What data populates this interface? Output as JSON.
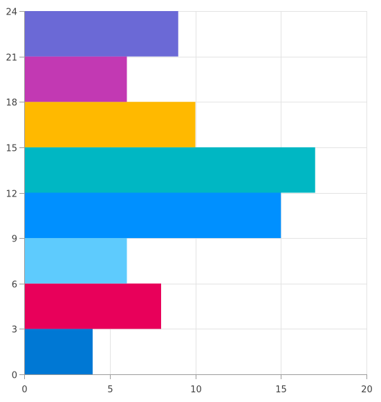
{
  "chart_data": {
    "type": "bar",
    "orientation": "horizontal",
    "title": "",
    "xlabel": "",
    "ylabel": "",
    "xlim": [
      0,
      20
    ],
    "ylim": [
      0,
      24
    ],
    "x_ticks": [
      0,
      5,
      10,
      15,
      20
    ],
    "y_ticks": [
      0,
      3,
      6,
      9,
      12,
      15,
      18,
      21,
      24
    ],
    "grid": true,
    "legend": "none",
    "bars": [
      {
        "y_start": 0,
        "y_end": 3,
        "value": 4,
        "color": "#0078d4"
      },
      {
        "y_start": 3,
        "y_end": 6,
        "value": 8,
        "color": "#e8005a"
      },
      {
        "y_start": 6,
        "y_end": 9,
        "value": 6,
        "color": "#5ecbfd"
      },
      {
        "y_start": 9,
        "y_end": 12,
        "value": 15,
        "color": "#0090ff"
      },
      {
        "y_start": 12,
        "y_end": 15,
        "value": 17,
        "color": "#00b7c3"
      },
      {
        "y_start": 15,
        "y_end": 18,
        "value": 10,
        "color": "#ffb900"
      },
      {
        "y_start": 18,
        "y_end": 21,
        "value": 6,
        "color": "#c239b3"
      },
      {
        "y_start": 21,
        "y_end": 24,
        "value": 9,
        "color": "#6b69d6"
      }
    ]
  }
}
